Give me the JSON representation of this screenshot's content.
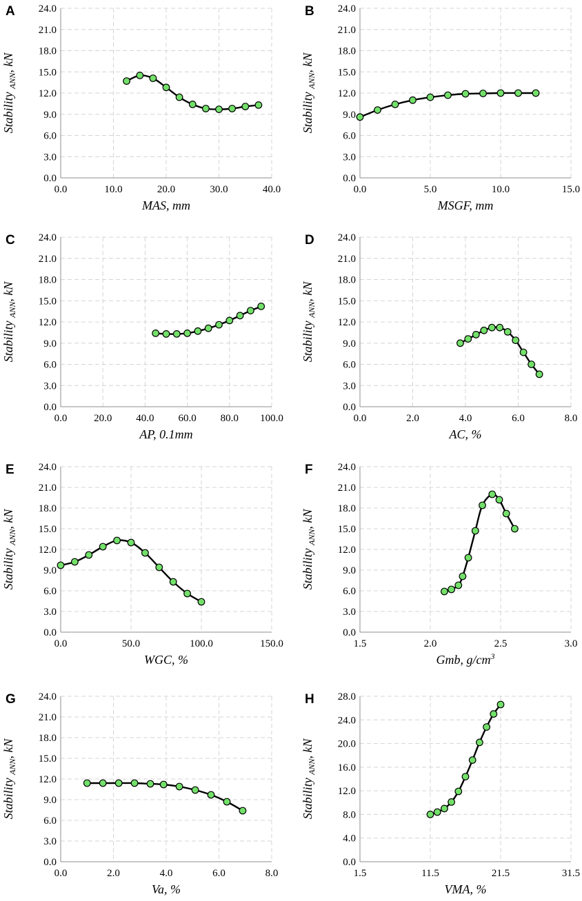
{
  "chart_data": [
    {
      "panel": "A",
      "type": "line",
      "xlabel": "MAS, mm",
      "ylabel_main": "Stability",
      "ylabel_sub": "ANN",
      "ylabel_end": ", kN",
      "xlim": [
        0,
        40
      ],
      "ylim": [
        0,
        24
      ],
      "xticks": [
        "0.0",
        "10.0",
        "20.0",
        "30.0",
        "40.0"
      ],
      "yticks": [
        "0.0",
        "3.0",
        "6.0",
        "9.0",
        "12.0",
        "15.0",
        "18.0",
        "21.0",
        "24.0"
      ],
      "x": [
        12.5,
        15,
        17.5,
        20,
        22.5,
        25,
        27.5,
        30,
        32.5,
        35,
        37.5
      ],
      "y": [
        13.7,
        14.5,
        14.1,
        12.8,
        11.4,
        10.4,
        9.8,
        9.7,
        9.8,
        10.1,
        10.3
      ]
    },
    {
      "panel": "B",
      "type": "line",
      "xlabel": "MSGF, mm",
      "ylabel_main": "Stability",
      "ylabel_sub": "ANN",
      "ylabel_end": ", kN",
      "xlim": [
        0,
        15
      ],
      "ylim": [
        0,
        24
      ],
      "xticks": [
        "0.0",
        "5.0",
        "10.0",
        "15.0"
      ],
      "yticks": [
        "0.0",
        "3.0",
        "6.0",
        "9.0",
        "12.0",
        "15.0",
        "18.0",
        "21.0",
        "24.0"
      ],
      "x": [
        0,
        1.25,
        2.5,
        3.75,
        5,
        6.25,
        7.5,
        8.75,
        10,
        11.25,
        12.5
      ],
      "y": [
        8.6,
        9.6,
        10.4,
        11.0,
        11.4,
        11.7,
        11.9,
        11.95,
        12.0,
        12.0,
        12.0
      ]
    },
    {
      "panel": "C",
      "type": "line",
      "xlabel": "AP, 0.1mm",
      "ylabel_main": "Stability",
      "ylabel_sub": "ANN",
      "ylabel_end": ", kN",
      "xlim": [
        0,
        100
      ],
      "ylim": [
        0,
        24
      ],
      "xticks": [
        "0.0",
        "20.0",
        "40.0",
        "60.0",
        "80.0",
        "100.0"
      ],
      "yticks": [
        "0.0",
        "3.0",
        "6.0",
        "9.0",
        "12.0",
        "15.0",
        "18.0",
        "21.0",
        "24.0"
      ],
      "x": [
        45,
        50,
        55,
        60,
        65,
        70,
        75,
        80,
        85,
        90,
        95
      ],
      "y": [
        10.4,
        10.3,
        10.3,
        10.4,
        10.7,
        11.1,
        11.6,
        12.2,
        12.9,
        13.6,
        14.2
      ]
    },
    {
      "panel": "D",
      "type": "line",
      "xlabel": "AC, %",
      "ylabel_main": "Stability",
      "ylabel_sub": "ANN",
      "ylabel_end": ", kN",
      "xlim": [
        0,
        8
      ],
      "ylim": [
        0,
        24
      ],
      "xticks": [
        "0.0",
        "2.0",
        "4.0",
        "6.0",
        "8.0"
      ],
      "yticks": [
        "0.0",
        "3.0",
        "6.0",
        "9.0",
        "12.0",
        "15.0",
        "18.0",
        "21.0",
        "24.0"
      ],
      "x": [
        3.8,
        4.1,
        4.4,
        4.7,
        5.0,
        5.3,
        5.6,
        5.9,
        6.2,
        6.5,
        6.8
      ],
      "y": [
        9.0,
        9.6,
        10.2,
        10.8,
        11.2,
        11.2,
        10.6,
        9.4,
        7.7,
        6.0,
        4.6
      ]
    },
    {
      "panel": "E",
      "type": "line",
      "xlabel": "WGC, %",
      "ylabel_main": "Stability",
      "ylabel_sub": "ANN",
      "ylabel_end": ", kN",
      "xlim": [
        0,
        150
      ],
      "ylim": [
        0,
        24
      ],
      "xticks": [
        "0.0",
        "50.0",
        "100.0",
        "150.0"
      ],
      "yticks": [
        "0.0",
        "3.0",
        "6.0",
        "9.0",
        "12.0",
        "15.0",
        "18.0",
        "21.0",
        "24.0"
      ],
      "x": [
        0,
        10,
        20,
        30,
        40,
        50,
        60,
        70,
        80,
        90,
        100
      ],
      "y": [
        9.7,
        10.2,
        11.2,
        12.4,
        13.3,
        13.0,
        11.5,
        9.4,
        7.3,
        5.6,
        4.4
      ]
    },
    {
      "panel": "F",
      "type": "line",
      "xlabel": "Gmb, g/cm",
      "xlabel_sup": "3",
      "ylabel_main": "Stability",
      "ylabel_sub": "ANN",
      "ylabel_end": ", kN",
      "xlim": [
        1.5,
        3.0
      ],
      "ylim": [
        0,
        24
      ],
      "xticks": [
        "1.5",
        "2.0",
        "2.5",
        "3.0"
      ],
      "yticks": [
        "0.0",
        "3.0",
        "6.0",
        "9.0",
        "12.0",
        "15.0",
        "18.0",
        "21.0",
        "24.0"
      ],
      "x": [
        2.1,
        2.15,
        2.2,
        2.23,
        2.27,
        2.32,
        2.37,
        2.44,
        2.49,
        2.54,
        2.6
      ],
      "y": [
        5.9,
        6.2,
        6.8,
        8.1,
        10.8,
        14.7,
        18.4,
        20.0,
        19.2,
        17.2,
        15.0
      ]
    },
    {
      "panel": "G",
      "type": "line",
      "xlabel": "Va, %",
      "ylabel_main": "Stability",
      "ylabel_sub": "ANN",
      "ylabel_end": ", kN",
      "xlim": [
        0,
        8
      ],
      "ylim": [
        0,
        24
      ],
      "xticks": [
        "0.0",
        "2.0",
        "4.0",
        "6.0",
        "8.0"
      ],
      "yticks": [
        "0.0",
        "3.0",
        "6.0",
        "9.0",
        "12.0",
        "15.0",
        "18.0",
        "21.0",
        "24.0"
      ],
      "x": [
        1.0,
        1.6,
        2.2,
        2.8,
        3.4,
        3.9,
        4.5,
        5.1,
        5.7,
        6.3,
        6.9
      ],
      "y": [
        11.4,
        11.4,
        11.4,
        11.4,
        11.3,
        11.2,
        10.9,
        10.4,
        9.7,
        8.7,
        7.4
      ]
    },
    {
      "panel": "H",
      "type": "line",
      "xlabel": "VMA, %",
      "ylabel_main": "Stability",
      "ylabel_sub": "ANN",
      "ylabel_end": ", kN",
      "xlim": [
        1.5,
        31.5
      ],
      "ylim": [
        0,
        28
      ],
      "xticks": [
        "1.5",
        "11.5",
        "21.5",
        "31.5"
      ],
      "yticks": [
        "0.0",
        "4.0",
        "8.0",
        "12.0",
        "16.0",
        "20.0",
        "24.0",
        "28.0"
      ],
      "x": [
        11.5,
        12.5,
        13.5,
        14.5,
        15.5,
        16.5,
        17.5,
        18.5,
        19.5,
        20.5,
        21.5
      ],
      "y": [
        8.0,
        8.4,
        9.0,
        10.1,
        11.9,
        14.4,
        17.2,
        20.2,
        22.8,
        25.0,
        26.6
      ]
    }
  ]
}
